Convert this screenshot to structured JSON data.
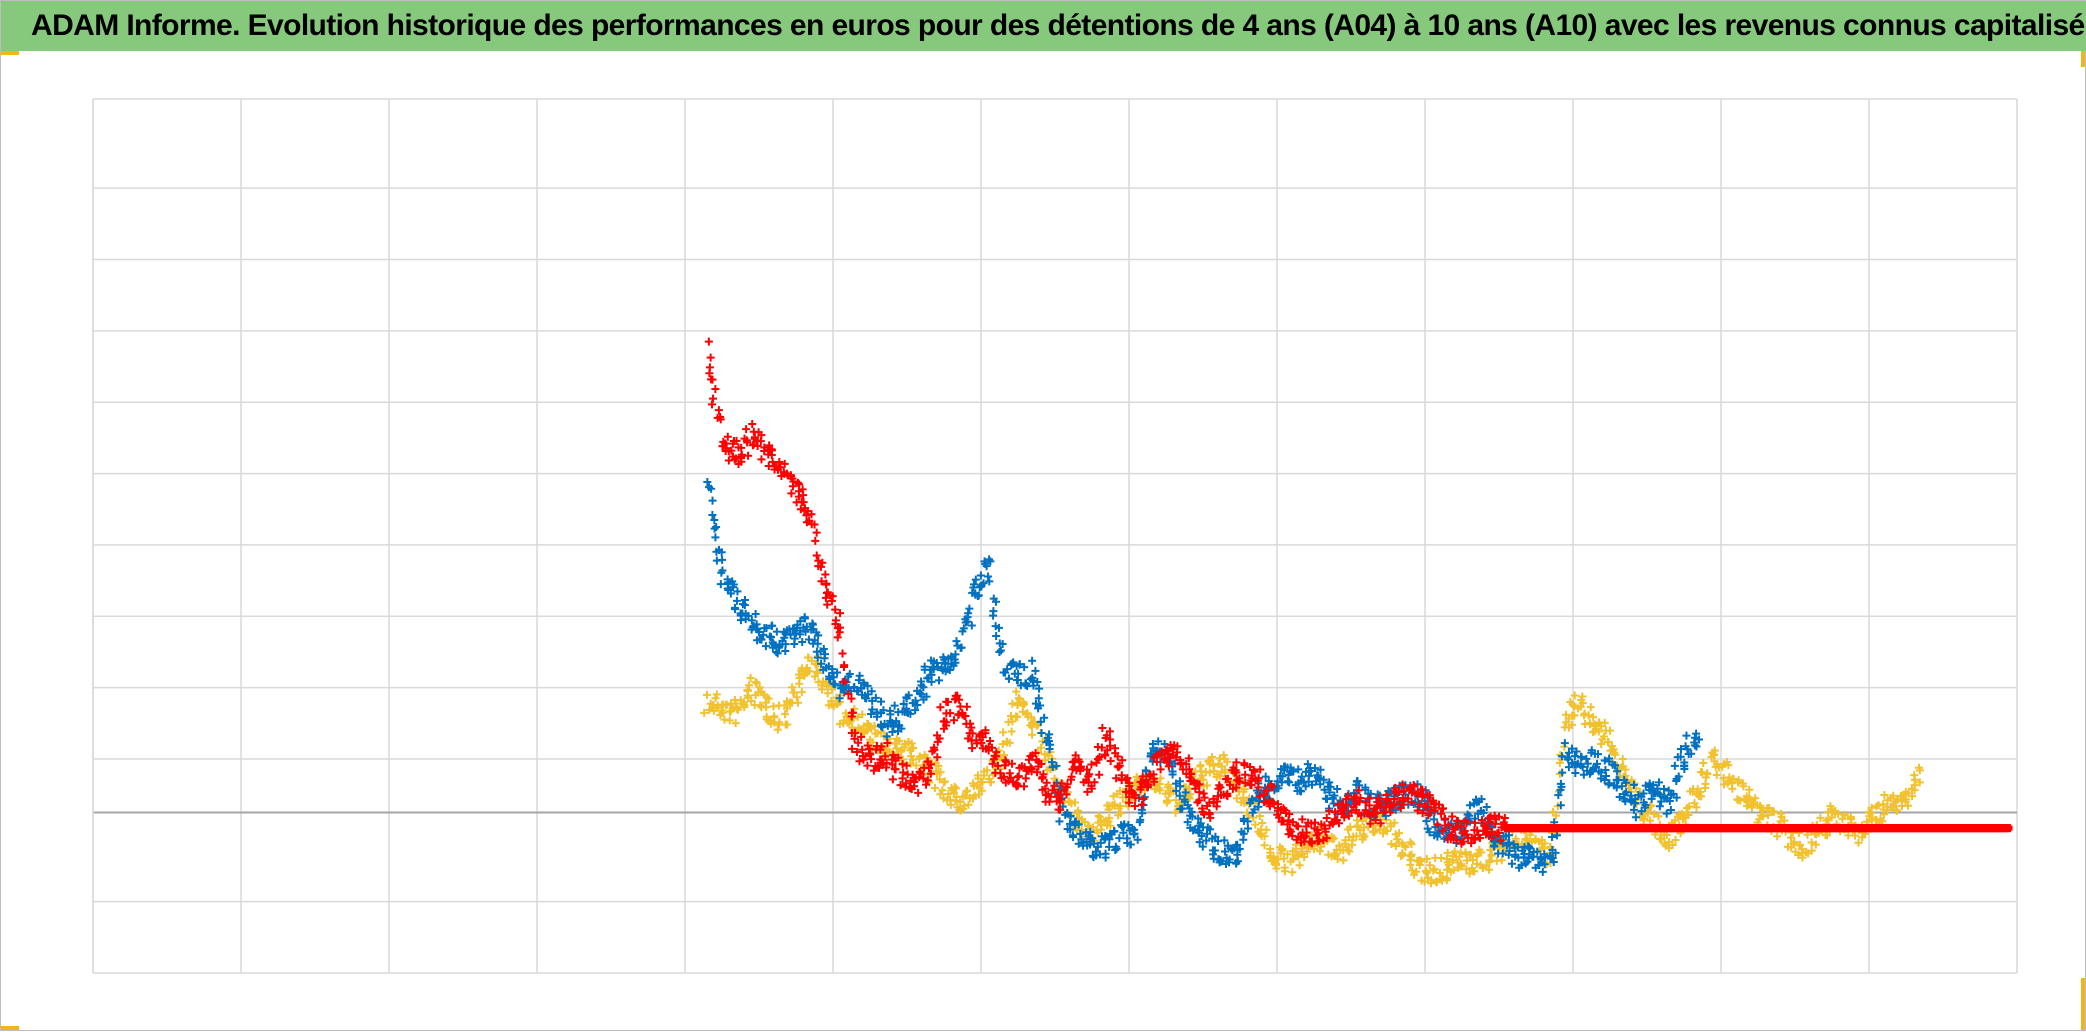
{
  "title": "ADAM Informe. Evolution historique des performances en euros pour des détentions de 4 ans (A04) à 10 ans (A10) avec les revenus connus capitalisés",
  "colors": {
    "header_bg": "#86c97c",
    "accent": "#f2b51c",
    "grid": "#d9d9d9",
    "zero_line": "#a6a6a6"
  },
  "chart_data": {
    "type": "scatter",
    "marker": "plus",
    "title": "",
    "xlabel": "",
    "ylabel": "",
    "tick_labels_shown": false,
    "grid": true,
    "x_range": [
      0,
      13
    ],
    "y_range": [
      -2.25,
      10
    ],
    "x_gridlines": 13,
    "y_gridlines": [
      -1.25,
      0,
      0.75,
      1.75,
      2.75,
      3.75,
      4.75,
      5.75,
      6.75,
      7.75,
      8.75
    ],
    "series": [
      {
        "color": "#f2c12e",
        "x": [
          4.15,
          4.25,
          4.35,
          4.45,
          4.55,
          4.65,
          4.75,
          4.85,
          4.95,
          5.05,
          5.15,
          5.25,
          5.35,
          5.45,
          5.55,
          5.65,
          5.75,
          5.85,
          5.95,
          6.05,
          6.15,
          6.25,
          6.35,
          6.45,
          6.55,
          6.65,
          6.75,
          6.85,
          6.95,
          7.05,
          7.15,
          7.25,
          7.35,
          7.45,
          7.55,
          7.65,
          7.75,
          7.85,
          7.95,
          8.05,
          8.15,
          8.25,
          8.35,
          8.45,
          8.55,
          8.65,
          8.75,
          8.85,
          8.95,
          9.05,
          9.15,
          9.25,
          9.35,
          9.45,
          9.55,
          9.65,
          9.75,
          9.85,
          9.95,
          10.05,
          10.15,
          10.25,
          10.35,
          10.45,
          10.55,
          10.65,
          10.75,
          10.85,
          10.95,
          11.05,
          11.15,
          11.25,
          11.35,
          11.45,
          11.55,
          11.65,
          11.75,
          11.85,
          11.95,
          12.05,
          12.15,
          12.25,
          12.35
        ],
        "y": [
          1.55,
          1.45,
          1.4,
          1.75,
          1.5,
          1.3,
          1.75,
          2.1,
          1.8,
          1.4,
          1.3,
          1.1,
          0.9,
          0.85,
          0.8,
          0.6,
          0.35,
          0.15,
          0.25,
          0.5,
          0.9,
          1.6,
          1.3,
          0.7,
          0.25,
          -0.15,
          -0.25,
          -0.05,
          0.15,
          0.3,
          0.5,
          0.25,
          0.1,
          0.45,
          0.6,
          0.65,
          0.3,
          0.05,
          -0.55,
          -0.7,
          -0.6,
          -0.35,
          -0.45,
          -0.5,
          -0.25,
          -0.15,
          -0.1,
          -0.5,
          -0.75,
          -0.85,
          -0.75,
          -0.7,
          -0.7,
          -0.6,
          -0.45,
          -0.3,
          -0.45,
          -0.6,
          1.3,
          1.6,
          1.15,
          1.0,
          0.55,
          0.1,
          -0.15,
          -0.4,
          0.0,
          0.35,
          0.75,
          0.5,
          0.25,
          -0.05,
          -0.1,
          -0.35,
          -0.5,
          -0.25,
          -0.05,
          -0.2,
          -0.3,
          0.0,
          0.1,
          0.2,
          0.55
        ]
      },
      {
        "color": "#0070c0",
        "x": [
          4.15,
          4.25,
          4.35,
          4.45,
          4.55,
          4.65,
          4.75,
          4.85,
          4.95,
          5.05,
          5.15,
          5.25,
          5.35,
          5.45,
          5.55,
          5.65,
          5.75,
          5.85,
          5.95,
          6.05,
          6.15,
          6.25,
          6.35,
          6.45,
          6.55,
          6.65,
          6.75,
          6.85,
          6.95,
          7.05,
          7.15,
          7.25,
          7.35,
          7.45,
          7.55,
          7.65,
          7.75,
          7.85,
          7.95,
          8.05,
          8.15,
          8.25,
          8.35,
          8.45,
          8.55,
          8.65,
          8.75,
          8.85,
          8.95,
          9.05,
          9.15,
          9.25,
          9.35,
          9.45,
          9.55,
          9.65,
          9.75,
          9.85,
          9.95,
          10.05,
          10.15,
          10.25,
          10.35,
          10.45,
          10.55,
          10.65,
          10.75,
          10.85
        ],
        "y": [
          4.6,
          3.4,
          3.0,
          2.65,
          2.5,
          2.35,
          2.5,
          2.6,
          2.1,
          1.75,
          1.8,
          1.6,
          1.2,
          1.35,
          1.5,
          1.95,
          2.0,
          2.3,
          3.0,
          3.5,
          2.1,
          1.9,
          1.95,
          1.05,
          0.0,
          -0.3,
          -0.45,
          -0.5,
          -0.35,
          -0.25,
          0.8,
          0.9,
          0.3,
          -0.25,
          -0.45,
          -0.6,
          -0.5,
          0.2,
          0.35,
          0.55,
          0.45,
          0.6,
          0.25,
          0.1,
          0.3,
          0.05,
          0.15,
          0.25,
          0.3,
          -0.15,
          -0.3,
          -0.25,
          0.1,
          -0.3,
          -0.5,
          -0.6,
          -0.7,
          -0.7,
          0.85,
          0.7,
          0.75,
          0.55,
          0.3,
          0.1,
          0.3,
          0.15,
          0.8,
          1.15
        ]
      },
      {
        "color": "#ff0000",
        "x": [
          4.15,
          4.25,
          4.35,
          4.45,
          4.55,
          4.65,
          4.75,
          4.85,
          4.95,
          5.05,
          5.15,
          5.25,
          5.35,
          5.45,
          5.55,
          5.65,
          5.75,
          5.85,
          5.95,
          6.05,
          6.15,
          6.25,
          6.35,
          6.45,
          6.55,
          6.65,
          6.75,
          6.85,
          6.95,
          7.05,
          7.15,
          7.25,
          7.35,
          7.45,
          7.55,
          7.65,
          7.75,
          7.85,
          7.95,
          8.05,
          8.15,
          8.25,
          8.35,
          8.45,
          8.55,
          8.65,
          8.75,
          8.85,
          8.95,
          9.05,
          9.15,
          9.25,
          9.35,
          9.45,
          9.55,
          9.65,
          9.75,
          9.85,
          9.95,
          10.05,
          10.15,
          10.25,
          10.35,
          10.45,
          10.55,
          10.65,
          10.75,
          10.85,
          10.95,
          11.05,
          11.15,
          11.25,
          11.35,
          11.45,
          11.55,
          11.65,
          11.75,
          11.85,
          11.95,
          12.05,
          12.15,
          12.25,
          12.35,
          12.45,
          12.55,
          12.65,
          12.75,
          12.85,
          12.95
        ],
        "y": [
          6.5,
          5.2,
          5.0,
          5.3,
          5.1,
          4.8,
          4.5,
          4.2,
          3.1,
          2.6,
          0.95,
          0.75,
          0.8,
          0.55,
          0.4,
          0.6,
          1.35,
          1.5,
          1.05,
          0.95,
          0.6,
          0.45,
          0.7,
          0.3,
          0.15,
          0.75,
          0.4,
          1.15,
          0.45,
          0.15,
          0.55,
          0.85,
          0.75,
          0.3,
          0.05,
          0.35,
          0.6,
          0.5,
          0.25,
          -0.1,
          -0.25,
          -0.3,
          -0.15,
          0.05,
          0.2,
          -0.05,
          0.1,
          0.25,
          0.2,
          0.05,
          -0.2,
          -0.3,
          -0.25,
          -0.2,
          -0.22,
          -0.22,
          -0.22,
          -0.22,
          -0.22,
          -0.22,
          -0.22,
          -0.22,
          -0.22,
          -0.22,
          -0.22,
          -0.22,
          -0.22,
          -0.22,
          -0.22,
          -0.22,
          -0.22,
          -0.22,
          -0.22,
          -0.22,
          -0.22,
          -0.22,
          -0.22,
          -0.22,
          -0.22,
          -0.22,
          -0.22,
          -0.22,
          -0.22,
          -0.22,
          -0.22,
          -0.22,
          -0.22,
          -0.22,
          -0.22
        ]
      }
    ]
  }
}
